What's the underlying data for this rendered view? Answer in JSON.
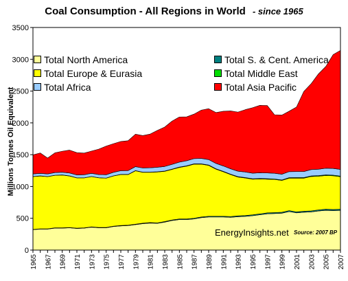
{
  "chart_data": {
    "type": "area",
    "stacked": true,
    "title": "Coal Consumption - All Regions in World",
    "subtitle": "- since 1965",
    "ylabel": "Millions Tonnes Oil Equivalent",
    "xlabel": "",
    "ylim": [
      0,
      3500
    ],
    "yticks": [
      0,
      500,
      1000,
      1500,
      2000,
      2500,
      3000,
      3500
    ],
    "x": [
      1965,
      1966,
      1967,
      1968,
      1969,
      1970,
      1971,
      1972,
      1973,
      1974,
      1975,
      1976,
      1977,
      1978,
      1979,
      1980,
      1981,
      1982,
      1983,
      1984,
      1985,
      1986,
      1987,
      1988,
      1989,
      1990,
      1991,
      1992,
      1993,
      1994,
      1995,
      1996,
      1997,
      1998,
      1999,
      2000,
      2001,
      2002,
      2003,
      2004,
      2005,
      2006,
      2007
    ],
    "xtick_labels": [
      "1965",
      "1967",
      "1969",
      "1971",
      "1973",
      "1975",
      "1977",
      "1979",
      "1981",
      "1983",
      "1985",
      "1987",
      "1989",
      "1991",
      "1993",
      "1995",
      "1997",
      "1999",
      "2001",
      "2003",
      "2005",
      "2007"
    ],
    "legend_position": "top (two columns inside plot)",
    "series": [
      {
        "name": "Total North America",
        "color": "#ffff99",
        "values": [
          320,
          330,
          330,
          345,
          345,
          350,
          340,
          345,
          360,
          350,
          350,
          370,
          380,
          385,
          400,
          415,
          425,
          420,
          440,
          465,
          480,
          480,
          490,
          510,
          520,
          520,
          520,
          515,
          525,
          530,
          540,
          555,
          570,
          575,
          580,
          605,
          585,
          595,
          600,
          615,
          625,
          620,
          625
        ]
      },
      {
        "name": "Total S. & Cent. America",
        "color": "#008080",
        "values": [
          5,
          5,
          5,
          5,
          5,
          5,
          5,
          5,
          5,
          6,
          6,
          6,
          7,
          7,
          7,
          8,
          8,
          8,
          9,
          9,
          10,
          10,
          11,
          11,
          12,
          12,
          12,
          12,
          13,
          13,
          14,
          14,
          15,
          15,
          15,
          16,
          16,
          16,
          17,
          17,
          18,
          18,
          19
        ]
      },
      {
        "name": "Total Europe & Eurasia",
        "color": "#ffff00",
        "values": [
          830,
          830,
          820,
          825,
          830,
          810,
          790,
          785,
          790,
          780,
          775,
          790,
          800,
          795,
          840,
          800,
          790,
          800,
          790,
          795,
          810,
          830,
          850,
          830,
          800,
          740,
          700,
          660,
          610,
          590,
          560,
          550,
          530,
          520,
          500,
          510,
          530,
          520,
          540,
          530,
          530,
          530,
          510
        ]
      },
      {
        "name": "Total Middle East",
        "color": "#00dd00",
        "values": [
          2,
          2,
          2,
          2,
          2,
          2,
          2,
          2,
          2,
          2,
          2,
          2,
          3,
          3,
          3,
          3,
          3,
          4,
          4,
          4,
          5,
          5,
          5,
          5,
          6,
          6,
          6,
          6,
          7,
          7,
          7,
          7,
          8,
          8,
          8,
          8,
          9,
          9,
          9,
          9,
          9,
          10,
          10
        ]
      },
      {
        "name": "Total Africa",
        "color": "#99ccff",
        "values": [
          40,
          40,
          40,
          42,
          42,
          45,
          45,
          48,
          50,
          50,
          52,
          55,
          58,
          60,
          62,
          65,
          68,
          70,
          72,
          75,
          78,
          80,
          82,
          85,
          85,
          85,
          85,
          85,
          85,
          88,
          88,
          90,
          90,
          90,
          90,
          95,
          95,
          95,
          100,
          100,
          105,
          105,
          105
        ]
      },
      {
        "name": "Total Asia Pacific",
        "color": "#ff0000",
        "values": [
          300,
          320,
          250,
          310,
          330,
          360,
          350,
          340,
          350,
          400,
          450,
          450,
          460,
          470,
          510,
          510,
          530,
          580,
          620,
          680,
          710,
          690,
          700,
          760,
          800,
          800,
          860,
          910,
          930,
          980,
          1030,
          1060,
          1060,
          920,
          930,
          950,
          1015,
          1260,
          1350,
          1500,
          1600,
          1790,
          1870
        ]
      }
    ],
    "annotations": [
      "EnergyInsights.net",
      "Source: 2007 BP"
    ]
  },
  "legend_labels": {
    "na": "Total North America",
    "eu": "Total Europe & Eurasia",
    "af": "Total Africa",
    "sa": "Total S. & Cent. America",
    "me": "Total Middle East",
    "ap": "Total Asia Pacific"
  }
}
